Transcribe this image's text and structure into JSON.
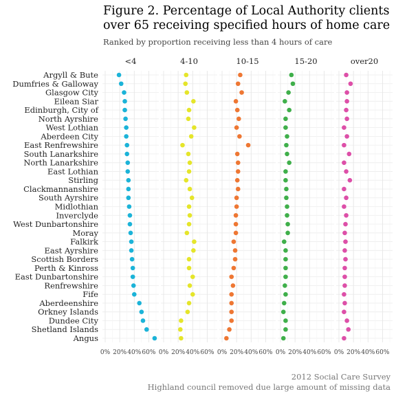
{
  "title": "Figure 2. Percentage of Local Authority clients over 65 receiving specified hours of home care",
  "subtitle": "Ranked by proportion receiving less than 4 hours of care",
  "caption": {
    "line1": "2012 Social Care Survey",
    "line2": "Highland council removed due large amount of missing data"
  },
  "colors": {
    "<4": "#1BB3D8",
    "4-10": "#E5E52A",
    "10-15": "#EE7733",
    "15-20": "#3FAF4A",
    "over20": "#DD4FA8"
  },
  "chart_data": {
    "type": "scatter",
    "facets": [
      "<4",
      "4-10",
      "10-15",
      "15-20",
      "over20"
    ],
    "x_tick_labels": [
      "0%",
      "20%",
      "40%",
      "60%"
    ],
    "xlim": [
      0,
      0.7
    ],
    "grid": true,
    "categories": [
      "Argyll & Bute",
      "Dumfries & Galloway",
      "Glasgow City",
      "Eilean Siar",
      "Edinburgh, City of",
      "North Ayrshire",
      "West Lothian",
      "Aberdeen City",
      "East Renfrewshire",
      "South Lanarkshire",
      "North Lanarkshire",
      "East Lothian",
      "Stirling",
      "Clackmannanshire",
      "South Ayrshire",
      "Midlothian",
      "Inverclyde",
      "West Dunbartonshire",
      "Moray",
      "Falkirk",
      "East Ayrshire",
      "Scottish Borders",
      "Perth & Kinross",
      "East Dunbartonshire",
      "Renfrewshire",
      "Fife",
      "Aberdeenshire",
      "Orkney Islands",
      "Dundee City",
      "Shetland Islands",
      "Angus"
    ],
    "series": [
      {
        "name": "<4",
        "values": [
          0.19,
          0.22,
          0.26,
          0.27,
          0.27,
          0.28,
          0.29,
          0.29,
          0.3,
          0.3,
          0.31,
          0.31,
          0.32,
          0.32,
          0.32,
          0.33,
          0.34,
          0.34,
          0.35,
          0.36,
          0.36,
          0.37,
          0.38,
          0.38,
          0.39,
          0.4,
          0.47,
          0.5,
          0.52,
          0.57,
          0.68
        ]
      },
      {
        "name": "4-10",
        "values": [
          0.31,
          0.3,
          0.32,
          0.41,
          0.35,
          0.34,
          0.42,
          0.38,
          0.26,
          0.34,
          0.36,
          0.35,
          0.31,
          0.36,
          0.39,
          0.35,
          0.36,
          0.35,
          0.32,
          0.42,
          0.41,
          0.35,
          0.35,
          0.4,
          0.36,
          0.4,
          0.35,
          0.33,
          0.24,
          0.23,
          0.24
        ]
      },
      {
        "name": "10-15",
        "values": [
          0.25,
          0.22,
          0.27,
          0.19,
          0.21,
          0.23,
          0.2,
          0.24,
          0.36,
          0.21,
          0.22,
          0.22,
          0.21,
          0.22,
          0.2,
          0.2,
          0.19,
          0.19,
          0.19,
          0.16,
          0.18,
          0.18,
          0.16,
          0.13,
          0.15,
          0.13,
          0.13,
          0.13,
          0.13,
          0.1,
          0.06
        ]
      },
      {
        "name": "15-20",
        "values": [
          0.15,
          0.17,
          0.11,
          0.06,
          0.12,
          0.07,
          0.07,
          0.09,
          0.08,
          0.09,
          0.12,
          0.07,
          0.07,
          0.08,
          0.08,
          0.09,
          0.09,
          0.1,
          0.1,
          0.05,
          0.07,
          0.07,
          0.07,
          0.07,
          0.06,
          0.07,
          0.05,
          0.04,
          0.07,
          0.07,
          0.04
        ]
      },
      {
        "name": "over20",
        "values": [
          0.1,
          0.16,
          0.11,
          0.11,
          0.1,
          0.11,
          0.07,
          0.11,
          0.07,
          0.14,
          0.07,
          0.1,
          0.15,
          0.07,
          0.1,
          0.07,
          0.1,
          0.09,
          0.08,
          0.09,
          0.08,
          0.09,
          0.08,
          0.08,
          0.08,
          0.07,
          0.08,
          0.07,
          0.11,
          0.13,
          0.07
        ]
      }
    ]
  }
}
